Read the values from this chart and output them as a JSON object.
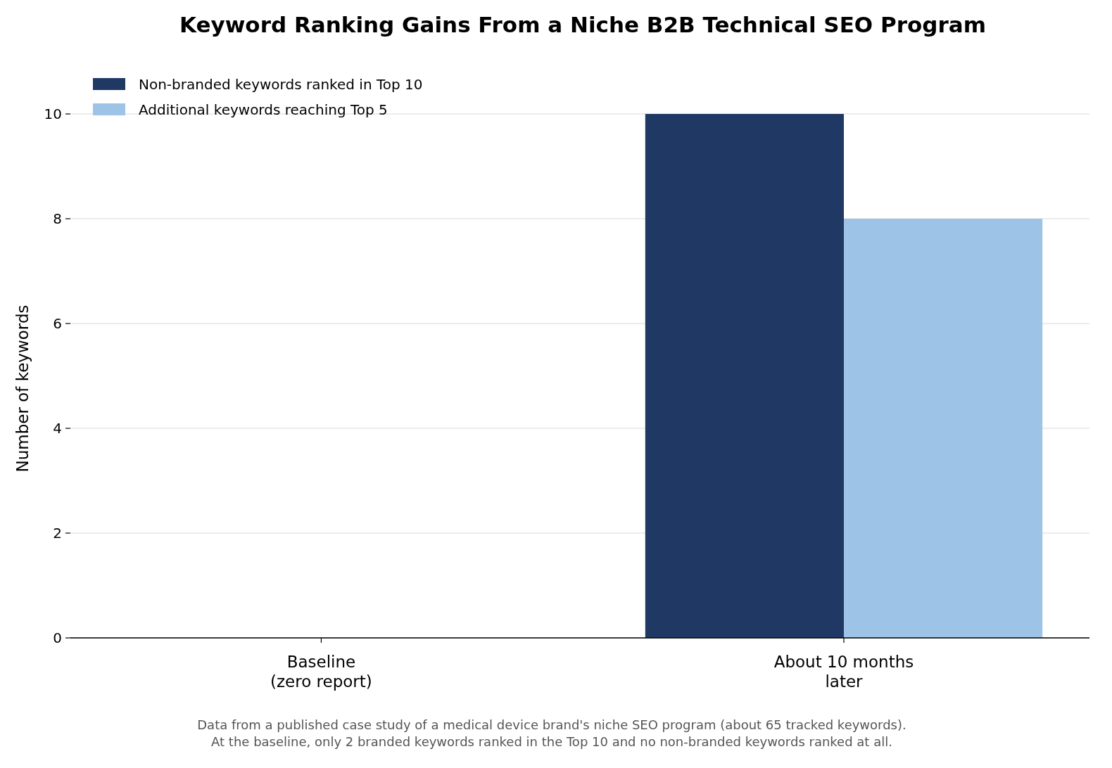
{
  "chart_data": {
    "type": "bar",
    "title": "Keyword Ranking Gains From a Niche B2B Technical SEO Program",
    "ylabel": "Number of keywords",
    "categories": [
      "Baseline\n(zero report)",
      "About 10 months\nlater"
    ],
    "series": [
      {
        "name": "Non-branded keywords ranked in Top 10",
        "color": "#203864",
        "values": [
          0,
          10
        ]
      },
      {
        "name": "Additional keywords reaching Top 5",
        "color": "#9dc3e6",
        "values": [
          0,
          8
        ]
      }
    ],
    "ylim": [
      0,
      10
    ],
    "yticks": [
      0,
      2,
      4,
      6,
      8,
      10
    ],
    "grid": "y",
    "legend": "top left",
    "annotations": [
      "Data from a published case study of a medical device brand's niche SEO program (about 65 tracked keywords).",
      "At the baseline, only 2 branded keywords ranked in the Top 10 and no non-branded keywords ranked at all."
    ]
  }
}
